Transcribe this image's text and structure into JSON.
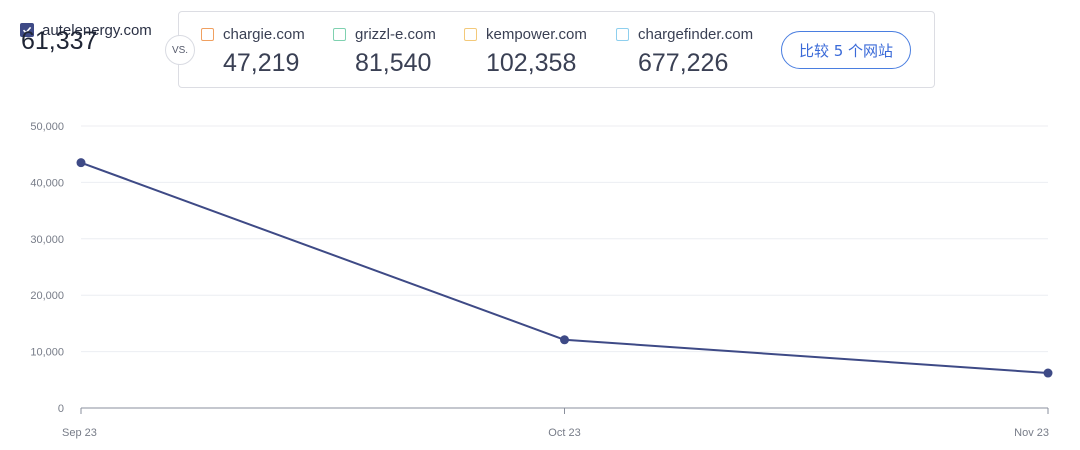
{
  "primary": {
    "domain": "autelenergy.com",
    "value": "61,337",
    "checked": true,
    "color": "#3e4a86"
  },
  "vs_label": "VS.",
  "competitors": [
    {
      "domain": "chargie.com",
      "value": "47,219",
      "color": "#f0a060"
    },
    {
      "domain": "grizzl-e.com",
      "value": "81,540",
      "color": "#7fd1b0"
    },
    {
      "domain": "kempower.com",
      "value": "102,358",
      "color": "#f3c97a"
    },
    {
      "domain": "chargefinder.com",
      "value": "677,226",
      "color": "#8ecfee"
    }
  ],
  "compare_button": {
    "label": "比较 5 个网站"
  },
  "chart_data": {
    "type": "line",
    "x": [
      "Sep 23",
      "Oct 23",
      "Nov 23"
    ],
    "series": [
      {
        "values": [
          43500,
          12100,
          6200
        ],
        "color": "#3e4a86"
      }
    ],
    "yticks": [
      "0",
      "10,000",
      "20,000",
      "30,000",
      "40,000",
      "50,000"
    ],
    "ylim": [
      0,
      50000
    ],
    "grid": true
  }
}
